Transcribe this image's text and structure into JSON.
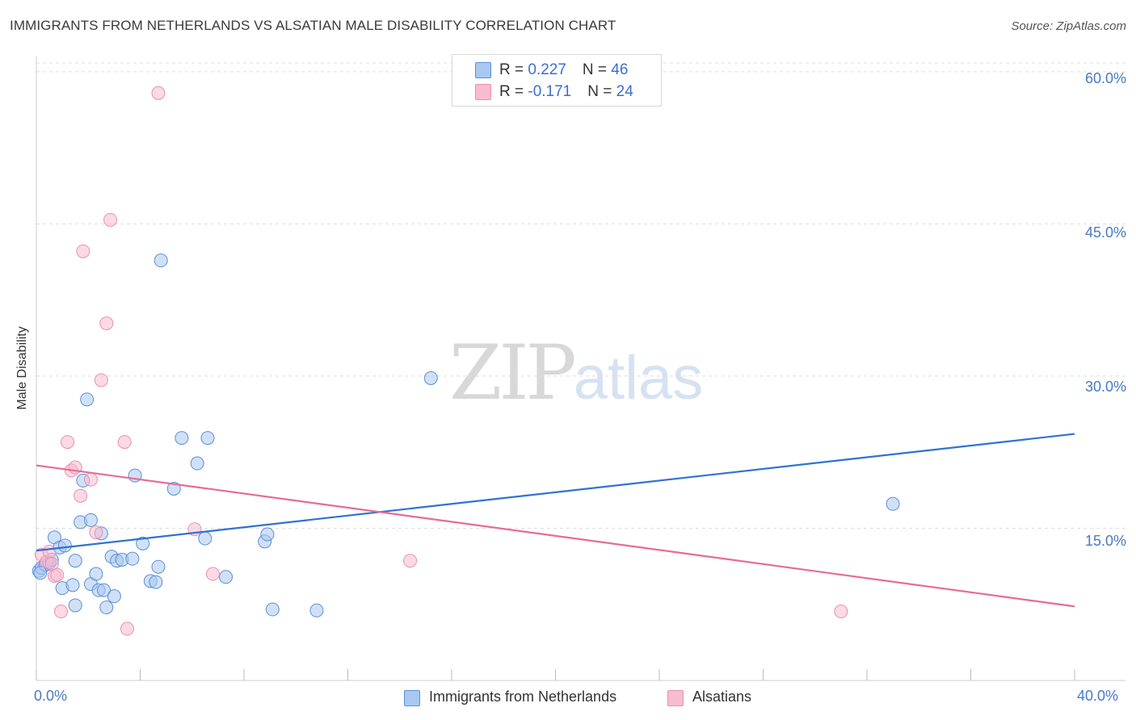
{
  "header": {
    "title": "IMMIGRANTS FROM NETHERLANDS VS ALSATIAN MALE DISABILITY CORRELATION CHART",
    "source": "Source: ZipAtlas.com"
  },
  "legend": {
    "rows": [
      {
        "r_label": "R = ",
        "r_value": "0.227",
        "n_label": "N = ",
        "n_value": "46"
      },
      {
        "r_label": "R = ",
        "r_value": "-0.171",
        "n_label": "N = ",
        "n_value": "24"
      }
    ]
  },
  "watermark": {
    "zip": "ZIP",
    "atlas": "atlas"
  },
  "colors": {
    "series_blue_fill": "#a9c8f0",
    "series_blue_stroke": "#5b8fd9",
    "series_blue_line": "#2f72d4",
    "series_pink_fill": "#f7bcd0",
    "series_pink_stroke": "#ea8fb0",
    "series_pink_line": "#e86a98",
    "grid": "#dddddd",
    "tick_text": "#4a78c8"
  },
  "chart_data": {
    "type": "scatter",
    "title": "IMMIGRANTS FROM NETHERLANDS VS ALSATIAN MALE DISABILITY CORRELATION CHART",
    "xlabel": "",
    "ylabel": "Male Disability",
    "xlim": [
      0,
      40
    ],
    "ylim": [
      0,
      61.5
    ],
    "x_tick_labels": [
      "0.0%",
      "40.0%"
    ],
    "y_ticks": [
      15,
      30,
      45,
      60
    ],
    "y_tick_labels": [
      "15.0%",
      "30.0%",
      "45.0%",
      "60.0%"
    ],
    "grid": true,
    "series": [
      {
        "name": "Immigrants from Netherlands",
        "color_key": "blue",
        "trend": {
          "x": [
            0,
            40
          ],
          "y": [
            12.8,
            24.3
          ]
        },
        "points": [
          {
            "x": 0.1,
            "y": 10.8
          },
          {
            "x": 0.2,
            "y": 11.1
          },
          {
            "x": 0.35,
            "y": 11.4
          },
          {
            "x": 0.5,
            "y": 11.6
          },
          {
            "x": 0.6,
            "y": 11.9
          },
          {
            "x": 0.7,
            "y": 14.1
          },
          {
            "x": 0.9,
            "y": 13.1
          },
          {
            "x": 1.1,
            "y": 13.3
          },
          {
            "x": 1.0,
            "y": 9.1
          },
          {
            "x": 1.4,
            "y": 9.4
          },
          {
            "x": 1.5,
            "y": 7.4
          },
          {
            "x": 1.5,
            "y": 11.8
          },
          {
            "x": 1.7,
            "y": 15.6
          },
          {
            "x": 1.8,
            "y": 19.7
          },
          {
            "x": 1.95,
            "y": 27.7
          },
          {
            "x": 2.1,
            "y": 15.8
          },
          {
            "x": 2.1,
            "y": 9.5
          },
          {
            "x": 2.3,
            "y": 10.5
          },
          {
            "x": 2.4,
            "y": 8.9
          },
          {
            "x": 2.5,
            "y": 14.5
          },
          {
            "x": 2.6,
            "y": 8.9
          },
          {
            "x": 2.7,
            "y": 7.2
          },
          {
            "x": 2.9,
            "y": 12.2
          },
          {
            "x": 3.0,
            "y": 8.3
          },
          {
            "x": 3.1,
            "y": 11.8
          },
          {
            "x": 3.3,
            "y": 11.9
          },
          {
            "x": 3.7,
            "y": 12.0
          },
          {
            "x": 3.8,
            "y": 20.2
          },
          {
            "x": 4.1,
            "y": 13.5
          },
          {
            "x": 4.4,
            "y": 9.8
          },
          {
            "x": 4.6,
            "y": 9.7
          },
          {
            "x": 4.7,
            "y": 11.2
          },
          {
            "x": 4.8,
            "y": 41.4
          },
          {
            "x": 5.3,
            "y": 18.9
          },
          {
            "x": 5.6,
            "y": 23.9
          },
          {
            "x": 6.2,
            "y": 21.4
          },
          {
            "x": 6.5,
            "y": 14.0
          },
          {
            "x": 6.6,
            "y": 23.9
          },
          {
            "x": 7.3,
            "y": 10.2
          },
          {
            "x": 8.8,
            "y": 13.7
          },
          {
            "x": 8.9,
            "y": 14.4
          },
          {
            "x": 9.1,
            "y": 7.0
          },
          {
            "x": 10.8,
            "y": 6.9
          },
          {
            "x": 15.2,
            "y": 29.8
          },
          {
            "x": 33.0,
            "y": 17.4
          },
          {
            "x": 0.15,
            "y": 10.6
          }
        ]
      },
      {
        "name": "Alsatians",
        "color_key": "pink",
        "trend": {
          "x": [
            0,
            40
          ],
          "y": [
            21.2,
            7.3
          ]
        },
        "points": [
          {
            "x": 0.2,
            "y": 12.4
          },
          {
            "x": 0.4,
            "y": 11.7
          },
          {
            "x": 0.5,
            "y": 12.7
          },
          {
            "x": 0.6,
            "y": 11.5
          },
          {
            "x": 0.7,
            "y": 10.3
          },
          {
            "x": 0.8,
            "y": 10.4
          },
          {
            "x": 0.95,
            "y": 6.8
          },
          {
            "x": 1.2,
            "y": 23.5
          },
          {
            "x": 1.35,
            "y": 20.7
          },
          {
            "x": 1.5,
            "y": 21.0
          },
          {
            "x": 1.7,
            "y": 18.2
          },
          {
            "x": 1.8,
            "y": 42.3
          },
          {
            "x": 2.1,
            "y": 19.8
          },
          {
            "x": 2.3,
            "y": 14.6
          },
          {
            "x": 2.5,
            "y": 29.6
          },
          {
            "x": 2.7,
            "y": 35.2
          },
          {
            "x": 2.85,
            "y": 45.4
          },
          {
            "x": 3.4,
            "y": 23.5
          },
          {
            "x": 3.5,
            "y": 5.1
          },
          {
            "x": 4.7,
            "y": 57.9
          },
          {
            "x": 6.1,
            "y": 14.9
          },
          {
            "x": 6.8,
            "y": 10.5
          },
          {
            "x": 14.4,
            "y": 11.8
          },
          {
            "x": 31.0,
            "y": 6.8
          }
        ]
      }
    ]
  }
}
